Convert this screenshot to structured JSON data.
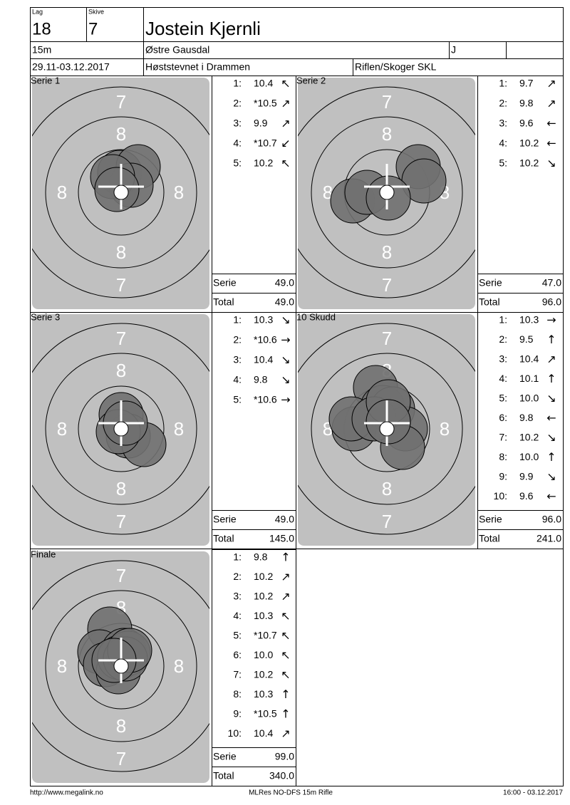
{
  "header": {
    "lag_label": "Lag",
    "lag": "18",
    "skive_label": "Skive",
    "skive": "7",
    "name": "Jostein Kjernli",
    "distance": "15m",
    "club": "Østre Gausdal",
    "class": "J",
    "dates": "29.11-03.12.2017",
    "event": "Høststevnet i Drammen",
    "organizer": "Riflen/Skoger SKL"
  },
  "target_labels": {
    "outer": "7",
    "inner": "8"
  },
  "panels": [
    {
      "title": "Serie 1",
      "shots": [
        {
          "n": "1:",
          "score": "10.4",
          "dir": "↖"
        },
        {
          "n": "2:",
          "score": "*10.5",
          "dir": "↗"
        },
        {
          "n": "3:",
          "score": "9.9",
          "dir": "↗"
        },
        {
          "n": "4:",
          "score": "*10.7",
          "dir": "↙"
        },
        {
          "n": "5:",
          "score": "10.2",
          "dir": "↖"
        }
      ],
      "serie_label": "Serie",
      "serie": "49.0",
      "total_label": "Total",
      "total": "49.0"
    },
    {
      "title": "Serie 2",
      "shots": [
        {
          "n": "1:",
          "score": "9.7",
          "dir": "↗"
        },
        {
          "n": "2:",
          "score": "9.8",
          "dir": "↗"
        },
        {
          "n": "3:",
          "score": "9.6",
          "dir": "←"
        },
        {
          "n": "4:",
          "score": "10.2",
          "dir": "←"
        },
        {
          "n": "5:",
          "score": "10.2",
          "dir": "↘"
        }
      ],
      "serie_label": "Serie",
      "serie": "47.0",
      "total_label": "Total",
      "total": "96.0"
    },
    {
      "title": "Serie 3",
      "shots": [
        {
          "n": "1:",
          "score": "10.3",
          "dir": "↘"
        },
        {
          "n": "2:",
          "score": "*10.6",
          "dir": "→"
        },
        {
          "n": "3:",
          "score": "10.4",
          "dir": "↘"
        },
        {
          "n": "4:",
          "score": "9.8",
          "dir": "↘"
        },
        {
          "n": "5:",
          "score": "*10.6",
          "dir": "→"
        }
      ],
      "serie_label": "Serie",
      "serie": "49.0",
      "total_label": "Total",
      "total": "145.0"
    },
    {
      "title": "10 Skudd",
      "shots": [
        {
          "n": "1:",
          "score": "10.3",
          "dir": "→"
        },
        {
          "n": "2:",
          "score": "9.5",
          "dir": "↑"
        },
        {
          "n": "3:",
          "score": "10.4",
          "dir": "↗"
        },
        {
          "n": "4:",
          "score": "10.1",
          "dir": "↑"
        },
        {
          "n": "5:",
          "score": "10.0",
          "dir": "↘"
        },
        {
          "n": "6:",
          "score": "9.8",
          "dir": "←"
        },
        {
          "n": "7:",
          "score": "10.2",
          "dir": "↘"
        },
        {
          "n": "8:",
          "score": "10.0",
          "dir": "↑"
        },
        {
          "n": "9:",
          "score": "9.9",
          "dir": "↘"
        },
        {
          "n": "10:",
          "score": "9.6",
          "dir": "←"
        }
      ],
      "serie_label": "Serie",
      "serie": "96.0",
      "total_label": "Total",
      "total": "241.0"
    },
    {
      "title": "Finale",
      "shots": [
        {
          "n": "1:",
          "score": "9.8",
          "dir": "↑"
        },
        {
          "n": "2:",
          "score": "10.2",
          "dir": "↗"
        },
        {
          "n": "3:",
          "score": "10.2",
          "dir": "↗"
        },
        {
          "n": "4:",
          "score": "10.3",
          "dir": "↖"
        },
        {
          "n": "5:",
          "score": "*10.7",
          "dir": "↖"
        },
        {
          "n": "6:",
          "score": "10.0",
          "dir": "↖"
        },
        {
          "n": "7:",
          "score": "10.2",
          "dir": "↖"
        },
        {
          "n": "8:",
          "score": "10.3",
          "dir": "↑"
        },
        {
          "n": "9:",
          "score": "*10.5",
          "dir": "↑"
        },
        {
          "n": "10:",
          "score": "10.4",
          "dir": "↗"
        }
      ],
      "serie_label": "Serie",
      "serie": "99.0",
      "total_label": "Total",
      "total": "340.0"
    }
  ],
  "footer": {
    "left": "http://www.megalink.no",
    "center": "MLRes NO-DFS 15m Rifle",
    "right": "16:00 - 03.12.2017"
  }
}
